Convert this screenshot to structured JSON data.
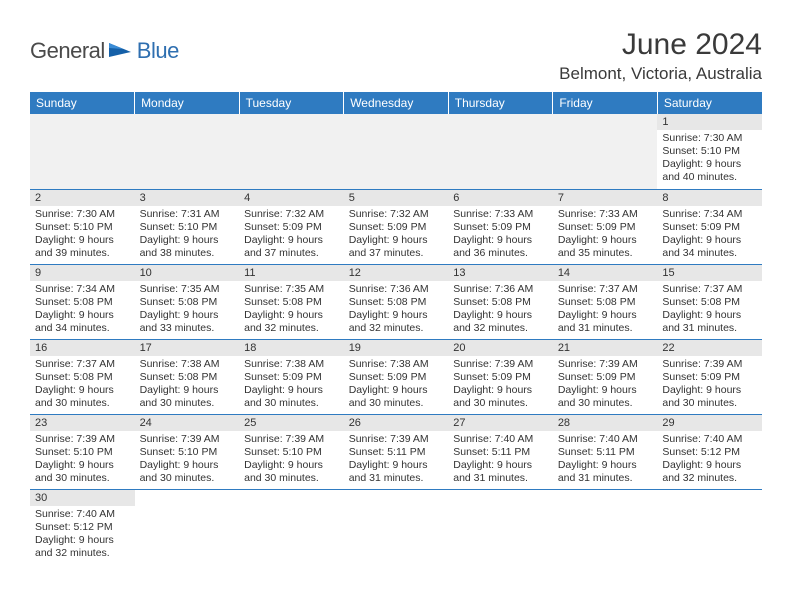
{
  "logo": {
    "general": "General",
    "blue": "Blue"
  },
  "title": "June 2024",
  "location": "Belmont, Victoria, Australia",
  "colors": {
    "header_bg": "#2f7bc1",
    "header_text": "#ffffff",
    "daynum_bg": "#e7e7e7",
    "border": "#2f7bc1",
    "text": "#333333",
    "logo_gray": "#4a4a4a",
    "logo_blue": "#2f6fb0"
  },
  "weekdays": [
    "Sunday",
    "Monday",
    "Tuesday",
    "Wednesday",
    "Thursday",
    "Friday",
    "Saturday"
  ],
  "weeks": [
    [
      null,
      null,
      null,
      null,
      null,
      null,
      {
        "n": "1",
        "sr": "7:30 AM",
        "ss": "5:10 PM",
        "dl": "9 hours and 40 minutes."
      }
    ],
    [
      {
        "n": "2",
        "sr": "7:30 AM",
        "ss": "5:10 PM",
        "dl": "9 hours and 39 minutes."
      },
      {
        "n": "3",
        "sr": "7:31 AM",
        "ss": "5:10 PM",
        "dl": "9 hours and 38 minutes."
      },
      {
        "n": "4",
        "sr": "7:32 AM",
        "ss": "5:09 PM",
        "dl": "9 hours and 37 minutes."
      },
      {
        "n": "5",
        "sr": "7:32 AM",
        "ss": "5:09 PM",
        "dl": "9 hours and 37 minutes."
      },
      {
        "n": "6",
        "sr": "7:33 AM",
        "ss": "5:09 PM",
        "dl": "9 hours and 36 minutes."
      },
      {
        "n": "7",
        "sr": "7:33 AM",
        "ss": "5:09 PM",
        "dl": "9 hours and 35 minutes."
      },
      {
        "n": "8",
        "sr": "7:34 AM",
        "ss": "5:09 PM",
        "dl": "9 hours and 34 minutes."
      }
    ],
    [
      {
        "n": "9",
        "sr": "7:34 AM",
        "ss": "5:08 PM",
        "dl": "9 hours and 34 minutes."
      },
      {
        "n": "10",
        "sr": "7:35 AM",
        "ss": "5:08 PM",
        "dl": "9 hours and 33 minutes."
      },
      {
        "n": "11",
        "sr": "7:35 AM",
        "ss": "5:08 PM",
        "dl": "9 hours and 32 minutes."
      },
      {
        "n": "12",
        "sr": "7:36 AM",
        "ss": "5:08 PM",
        "dl": "9 hours and 32 minutes."
      },
      {
        "n": "13",
        "sr": "7:36 AM",
        "ss": "5:08 PM",
        "dl": "9 hours and 32 minutes."
      },
      {
        "n": "14",
        "sr": "7:37 AM",
        "ss": "5:08 PM",
        "dl": "9 hours and 31 minutes."
      },
      {
        "n": "15",
        "sr": "7:37 AM",
        "ss": "5:08 PM",
        "dl": "9 hours and 31 minutes."
      }
    ],
    [
      {
        "n": "16",
        "sr": "7:37 AM",
        "ss": "5:08 PM",
        "dl": "9 hours and 30 minutes."
      },
      {
        "n": "17",
        "sr": "7:38 AM",
        "ss": "5:08 PM",
        "dl": "9 hours and 30 minutes."
      },
      {
        "n": "18",
        "sr": "7:38 AM",
        "ss": "5:09 PM",
        "dl": "9 hours and 30 minutes."
      },
      {
        "n": "19",
        "sr": "7:38 AM",
        "ss": "5:09 PM",
        "dl": "9 hours and 30 minutes."
      },
      {
        "n": "20",
        "sr": "7:39 AM",
        "ss": "5:09 PM",
        "dl": "9 hours and 30 minutes."
      },
      {
        "n": "21",
        "sr": "7:39 AM",
        "ss": "5:09 PM",
        "dl": "9 hours and 30 minutes."
      },
      {
        "n": "22",
        "sr": "7:39 AM",
        "ss": "5:09 PM",
        "dl": "9 hours and 30 minutes."
      }
    ],
    [
      {
        "n": "23",
        "sr": "7:39 AM",
        "ss": "5:10 PM",
        "dl": "9 hours and 30 minutes."
      },
      {
        "n": "24",
        "sr": "7:39 AM",
        "ss": "5:10 PM",
        "dl": "9 hours and 30 minutes."
      },
      {
        "n": "25",
        "sr": "7:39 AM",
        "ss": "5:10 PM",
        "dl": "9 hours and 30 minutes."
      },
      {
        "n": "26",
        "sr": "7:39 AM",
        "ss": "5:11 PM",
        "dl": "9 hours and 31 minutes."
      },
      {
        "n": "27",
        "sr": "7:40 AM",
        "ss": "5:11 PM",
        "dl": "9 hours and 31 minutes."
      },
      {
        "n": "28",
        "sr": "7:40 AM",
        "ss": "5:11 PM",
        "dl": "9 hours and 31 minutes."
      },
      {
        "n": "29",
        "sr": "7:40 AM",
        "ss": "5:12 PM",
        "dl": "9 hours and 32 minutes."
      }
    ],
    [
      {
        "n": "30",
        "sr": "7:40 AM",
        "ss": "5:12 PM",
        "dl": "9 hours and 32 minutes."
      },
      null,
      null,
      null,
      null,
      null,
      null
    ]
  ],
  "labels": {
    "sunrise": "Sunrise:",
    "sunset": "Sunset:",
    "daylight": "Daylight:"
  }
}
